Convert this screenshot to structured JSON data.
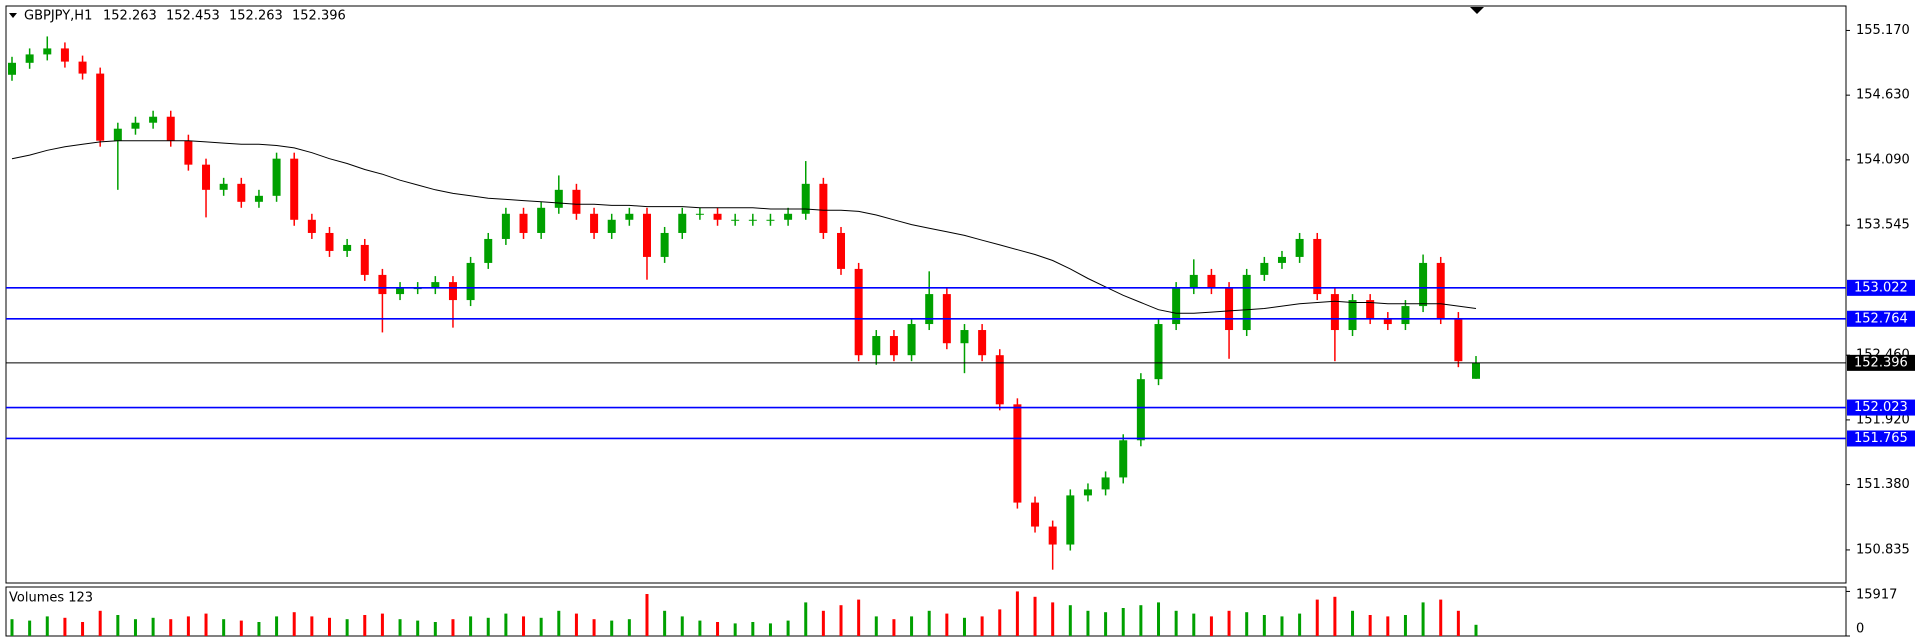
{
  "chart_data": {
    "type": "candlestick",
    "title": "GBPJPY,H1",
    "volume_title": "Volumes 123",
    "open": [
      154.8,
      154.9,
      154.97,
      155.02,
      154.91,
      154.81,
      154.25,
      154.35,
      154.4,
      154.45,
      154.25,
      154.05,
      153.84,
      153.89,
      153.74,
      153.79,
      154.1,
      153.59,
      153.48,
      153.33,
      153.38,
      153.13,
      152.97,
      153.02,
      153.02,
      153.07,
      152.92,
      153.23,
      153.43,
      153.64,
      153.48,
      153.69,
      153.84,
      153.64,
      153.48,
      153.59,
      153.64,
      153.28,
      153.48,
      153.64,
      153.64,
      153.59,
      153.59,
      153.59,
      153.59,
      153.64,
      153.89,
      153.48,
      153.18,
      152.46,
      152.62,
      152.46,
      152.72,
      152.97,
      152.56,
      152.67,
      152.46,
      152.05,
      151.23,
      151.03,
      150.88,
      151.29,
      151.34,
      151.44,
      151.75,
      152.26,
      152.72,
      153.02,
      153.13,
      153.02,
      152.67,
      153.13,
      153.23,
      153.28,
      153.43,
      152.97,
      152.67,
      152.92,
      152.77,
      152.72,
      152.87,
      153.23,
      152.77,
      152.263
    ],
    "high": [
      154.95,
      155.02,
      155.12,
      155.07,
      154.96,
      154.86,
      154.4,
      154.45,
      154.5,
      154.5,
      154.3,
      154.1,
      153.94,
      153.94,
      153.84,
      154.15,
      154.15,
      153.64,
      153.53,
      153.43,
      153.43,
      153.18,
      153.07,
      153.07,
      153.12,
      153.12,
      153.28,
      153.48,
      153.69,
      153.69,
      153.74,
      153.96,
      153.89,
      153.69,
      153.64,
      153.69,
      153.69,
      153.53,
      153.69,
      153.69,
      153.69,
      153.64,
      153.64,
      153.64,
      153.69,
      154.08,
      153.94,
      153.53,
      153.23,
      152.67,
      152.67,
      152.77,
      153.16,
      153.02,
      152.72,
      152.72,
      152.51,
      152.1,
      151.28,
      151.08,
      151.34,
      151.39,
      151.49,
      151.8,
      152.31,
      152.77,
      153.07,
      153.26,
      153.18,
      153.07,
      153.18,
      153.28,
      153.33,
      153.48,
      153.48,
      153.02,
      152.97,
      152.97,
      152.82,
      152.92,
      153.3,
      153.28,
      152.82,
      152.453
    ],
    "low": [
      154.75,
      154.85,
      154.92,
      154.86,
      154.76,
      154.2,
      153.84,
      154.3,
      154.35,
      154.2,
      154.0,
      153.61,
      153.79,
      153.69,
      153.69,
      153.74,
      153.54,
      153.43,
      153.28,
      153.28,
      153.08,
      152.65,
      152.92,
      152.97,
      152.97,
      152.69,
      152.87,
      153.18,
      153.38,
      153.43,
      153.43,
      153.64,
      153.59,
      153.43,
      153.43,
      153.54,
      153.09,
      153.23,
      153.43,
      153.59,
      153.54,
      153.54,
      153.54,
      153.54,
      153.54,
      153.59,
      153.43,
      153.13,
      152.41,
      152.38,
      152.41,
      152.41,
      152.67,
      152.51,
      152.31,
      152.41,
      152.0,
      151.18,
      150.98,
      150.67,
      150.83,
      151.24,
      151.29,
      151.39,
      151.7,
      152.21,
      152.67,
      152.97,
      152.97,
      152.43,
      152.62,
      153.08,
      153.18,
      153.23,
      152.92,
      152.41,
      152.62,
      152.72,
      152.67,
      152.67,
      152.82,
      152.72,
      152.36,
      152.263
    ],
    "close": [
      154.9,
      154.97,
      155.02,
      154.91,
      154.81,
      154.25,
      154.35,
      154.4,
      154.45,
      154.25,
      154.05,
      153.84,
      153.89,
      153.74,
      153.79,
      154.1,
      153.59,
      153.48,
      153.33,
      153.38,
      153.13,
      152.97,
      153.02,
      153.02,
      153.07,
      152.92,
      153.23,
      153.43,
      153.64,
      153.48,
      153.69,
      153.84,
      153.64,
      153.48,
      153.59,
      153.64,
      153.28,
      153.48,
      153.64,
      153.64,
      153.59,
      153.59,
      153.59,
      153.59,
      153.64,
      153.89,
      153.48,
      153.18,
      152.46,
      152.62,
      152.46,
      152.72,
      152.97,
      152.56,
      152.67,
      152.46,
      152.05,
      151.23,
      151.03,
      150.88,
      151.29,
      151.34,
      151.44,
      151.75,
      152.26,
      152.72,
      153.02,
      153.13,
      153.02,
      152.67,
      153.13,
      153.23,
      153.28,
      153.43,
      152.97,
      152.67,
      152.92,
      152.77,
      152.72,
      152.87,
      153.23,
      152.77,
      152.41,
      152.396
    ],
    "ma": [
      154.1,
      154.13,
      154.17,
      154.2,
      154.22,
      154.24,
      154.25,
      154.25,
      154.25,
      154.25,
      154.25,
      154.24,
      154.23,
      154.22,
      154.22,
      154.21,
      154.19,
      154.15,
      154.1,
      154.06,
      154.01,
      153.97,
      153.92,
      153.88,
      153.84,
      153.81,
      153.79,
      153.77,
      153.76,
      153.75,
      153.74,
      153.73,
      153.72,
      153.72,
      153.71,
      153.71,
      153.7,
      153.7,
      153.7,
      153.69,
      153.69,
      153.69,
      153.69,
      153.68,
      153.68,
      153.68,
      153.67,
      153.67,
      153.66,
      153.63,
      153.59,
      153.55,
      153.52,
      153.49,
      153.46,
      153.42,
      153.38,
      153.34,
      153.3,
      153.25,
      153.18,
      153.1,
      153.03,
      152.96,
      152.9,
      152.84,
      152.81,
      152.81,
      152.82,
      152.83,
      152.84,
      152.85,
      152.87,
      152.89,
      152.9,
      152.91,
      152.9,
      152.9,
      152.89,
      152.89,
      152.89,
      152.89,
      152.87,
      152.85
    ],
    "volume": [
      6000,
      5500,
      7000,
      6500,
      5000,
      9000,
      7500,
      6000,
      6500,
      6000,
      7000,
      8000,
      6000,
      5500,
      5000,
      7000,
      8500,
      7000,
      6500,
      6000,
      7500,
      8000,
      6000,
      5500,
      5000,
      6000,
      7000,
      6500,
      8000,
      7000,
      6500,
      9000,
      8000,
      6000,
      5500,
      6000,
      15000,
      9000,
      7000,
      5500,
      5000,
      4500,
      5000,
      4500,
      5500,
      12000,
      9000,
      11000,
      13000,
      7000,
      6000,
      7000,
      9000,
      8000,
      6500,
      7000,
      9500,
      15917,
      14000,
      12000,
      11000,
      9000,
      8500,
      10000,
      11000,
      12000,
      9000,
      8000,
      7000,
      9000,
      8500,
      7500,
      7000,
      8000,
      13000,
      14000,
      9000,
      7500,
      7000,
      7500,
      12000,
      13000,
      9000,
      4000
    ],
    "up_color": "#00a000",
    "down_color": "#ff0000",
    "ma_color": "#000000",
    "level_color": "#0000ff",
    "levels": [
      153.022,
      152.764,
      152.023,
      151.765
    ],
    "ylim": [
      150.559,
      155.374
    ],
    "yticks": [
      {
        "value": 155.17,
        "label": "155.170"
      },
      {
        "value": 154.63,
        "label": "154.630"
      },
      {
        "value": 154.09,
        "label": "154.090"
      },
      153.545,
      {
        "value": 152.46,
        "label": "152.460"
      },
      {
        "value": 151.92,
        "label": "151.920"
      },
      {
        "value": 151.38,
        "label": "151.380"
      },
      150.835
    ],
    "vlim": [
      0,
      17500
    ],
    "vticks": [
      15917,
      0
    ]
  }
}
